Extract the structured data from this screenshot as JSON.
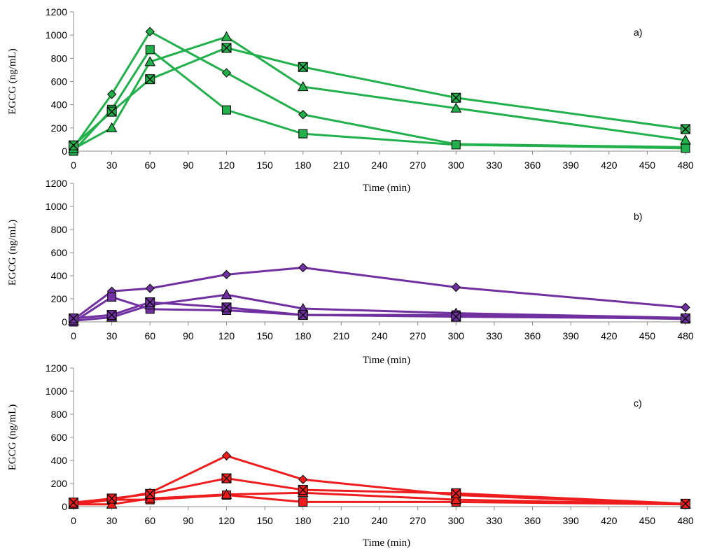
{
  "chart_data": [
    {
      "type": "line",
      "panel_label": "a)",
      "color": "#21b04b",
      "xlabel": "Time (min)",
      "ylabel": "EGCG (ng/mL)",
      "xlim": [
        0,
        480
      ],
      "ylim": [
        0,
        1200
      ],
      "x_ticks": [
        0,
        30,
        60,
        90,
        120,
        150,
        180,
        210,
        240,
        270,
        300,
        330,
        360,
        390,
        420,
        450,
        480
      ],
      "y_ticks": [
        0,
        200,
        400,
        600,
        800,
        1000,
        1200
      ],
      "x": [
        0,
        30,
        60,
        120,
        180,
        300,
        480
      ],
      "series": [
        {
          "name": "diamond",
          "marker": "diamond",
          "values": [
            30,
            490,
            1030,
            675,
            315,
            60,
            35
          ]
        },
        {
          "name": "square",
          "marker": "square",
          "values": [
            0,
            360,
            875,
            355,
            150,
            55,
            25
          ]
        },
        {
          "name": "triangle",
          "marker": "triangle",
          "values": [
            20,
            200,
            770,
            985,
            555,
            370,
            95
          ]
        },
        {
          "name": "x-square",
          "marker": "xsquare",
          "values": [
            50,
            340,
            620,
            890,
            725,
            460,
            190
          ]
        }
      ]
    },
    {
      "type": "line",
      "panel_label": "b)",
      "color": "#7030a0",
      "xlabel": "Time (min)",
      "ylabel": "EGCG (ng/mL)",
      "xlim": [
        0,
        480
      ],
      "ylim": [
        0,
        1200
      ],
      "x_ticks": [
        0,
        30,
        60,
        90,
        120,
        150,
        180,
        210,
        240,
        270,
        300,
        330,
        360,
        390,
        420,
        450,
        480
      ],
      "y_ticks": [
        0,
        200,
        400,
        600,
        800,
        1000,
        1200
      ],
      "x": [
        0,
        30,
        60,
        120,
        180,
        300,
        480
      ],
      "series": [
        {
          "name": "diamond",
          "marker": "diamond",
          "values": [
            20,
            265,
            290,
            410,
            470,
            300,
            125
          ]
        },
        {
          "name": "square",
          "marker": "square",
          "values": [
            0,
            215,
            110,
            100,
            60,
            60,
            25
          ]
        },
        {
          "name": "triangle",
          "marker": "triangle",
          "values": [
            10,
            40,
            145,
            235,
            115,
            75,
            35
          ]
        },
        {
          "name": "x-square",
          "marker": "xsquare",
          "values": [
            30,
            60,
            170,
            125,
            60,
            45,
            30
          ]
        }
      ]
    },
    {
      "type": "line",
      "panel_label": "c)",
      "color": "#ee1c1c",
      "xlabel": "Time (min)",
      "ylabel": "EGCG (ng/mL)",
      "xlim": [
        0,
        480
      ],
      "ylim": [
        0,
        1200
      ],
      "x_ticks": [
        0,
        30,
        60,
        90,
        120,
        150,
        180,
        210,
        240,
        270,
        300,
        330,
        360,
        390,
        420,
        450,
        480
      ],
      "y_ticks": [
        0,
        200,
        400,
        600,
        800,
        1000,
        1200
      ],
      "x": [
        0,
        30,
        60,
        120,
        180,
        300,
        480
      ],
      "series": [
        {
          "name": "diamond",
          "marker": "diamond",
          "values": [
            20,
            60,
            120,
            440,
            235,
            100,
            20
          ]
        },
        {
          "name": "square",
          "marker": "square",
          "values": [
            20,
            60,
            60,
            100,
            40,
            40,
            20
          ]
        },
        {
          "name": "triangle",
          "marker": "triangle",
          "values": [
            20,
            20,
            70,
            105,
            120,
            60,
            20
          ]
        },
        {
          "name": "x-square",
          "marker": "xsquare",
          "values": [
            35,
            70,
            110,
            245,
            145,
            115,
            25
          ]
        }
      ]
    }
  ]
}
